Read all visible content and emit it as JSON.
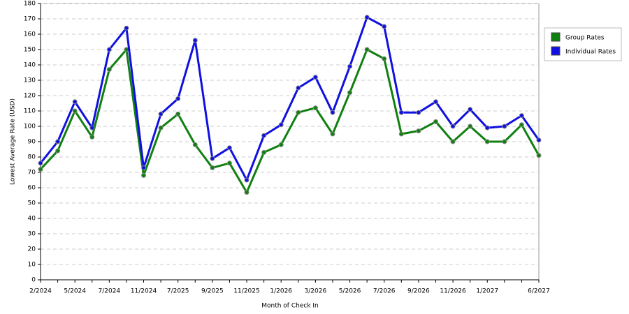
{
  "chart_data": {
    "type": "line",
    "xlabel": "Month of Check In",
    "ylabel": "Lowest Average Rate (USD)",
    "categories": [
      "2/2024",
      null,
      "5/2024",
      null,
      "7/2024",
      null,
      "11/2024",
      null,
      "7/2025",
      null,
      "9/2025",
      null,
      "11/2025",
      null,
      "1/2026",
      null,
      "3/2026",
      null,
      "5/2026",
      null,
      "7/2026",
      null,
      "9/2026",
      null,
      "11/2026",
      null,
      "1/2027",
      null,
      null,
      "6/2027"
    ],
    "series": [
      {
        "name": "Group Rates",
        "color": "#108010",
        "values": [
          72,
          84,
          110,
          93,
          137,
          150,
          68,
          99,
          108,
          88,
          73,
          76,
          57,
          83,
          88,
          109,
          112,
          95,
          122,
          150,
          144,
          95,
          97,
          103,
          90,
          100,
          90,
          90,
          101,
          81
        ]
      },
      {
        "name": "Individual Rates",
        "color": "#1010e0",
        "values": [
          76,
          90,
          116,
          99,
          150,
          164,
          73,
          108,
          118,
          156,
          79,
          86,
          65,
          94,
          101,
          125,
          132,
          109,
          139,
          171,
          165,
          109,
          109,
          116,
          100,
          111,
          99,
          100,
          107,
          91
        ]
      }
    ],
    "ylim": [
      0,
      180
    ],
    "yticks": [
      0,
      10,
      20,
      30,
      40,
      50,
      60,
      70,
      80,
      90,
      100,
      110,
      120,
      130,
      140,
      150,
      160,
      170,
      180
    ],
    "grid": true,
    "legend": "right"
  }
}
